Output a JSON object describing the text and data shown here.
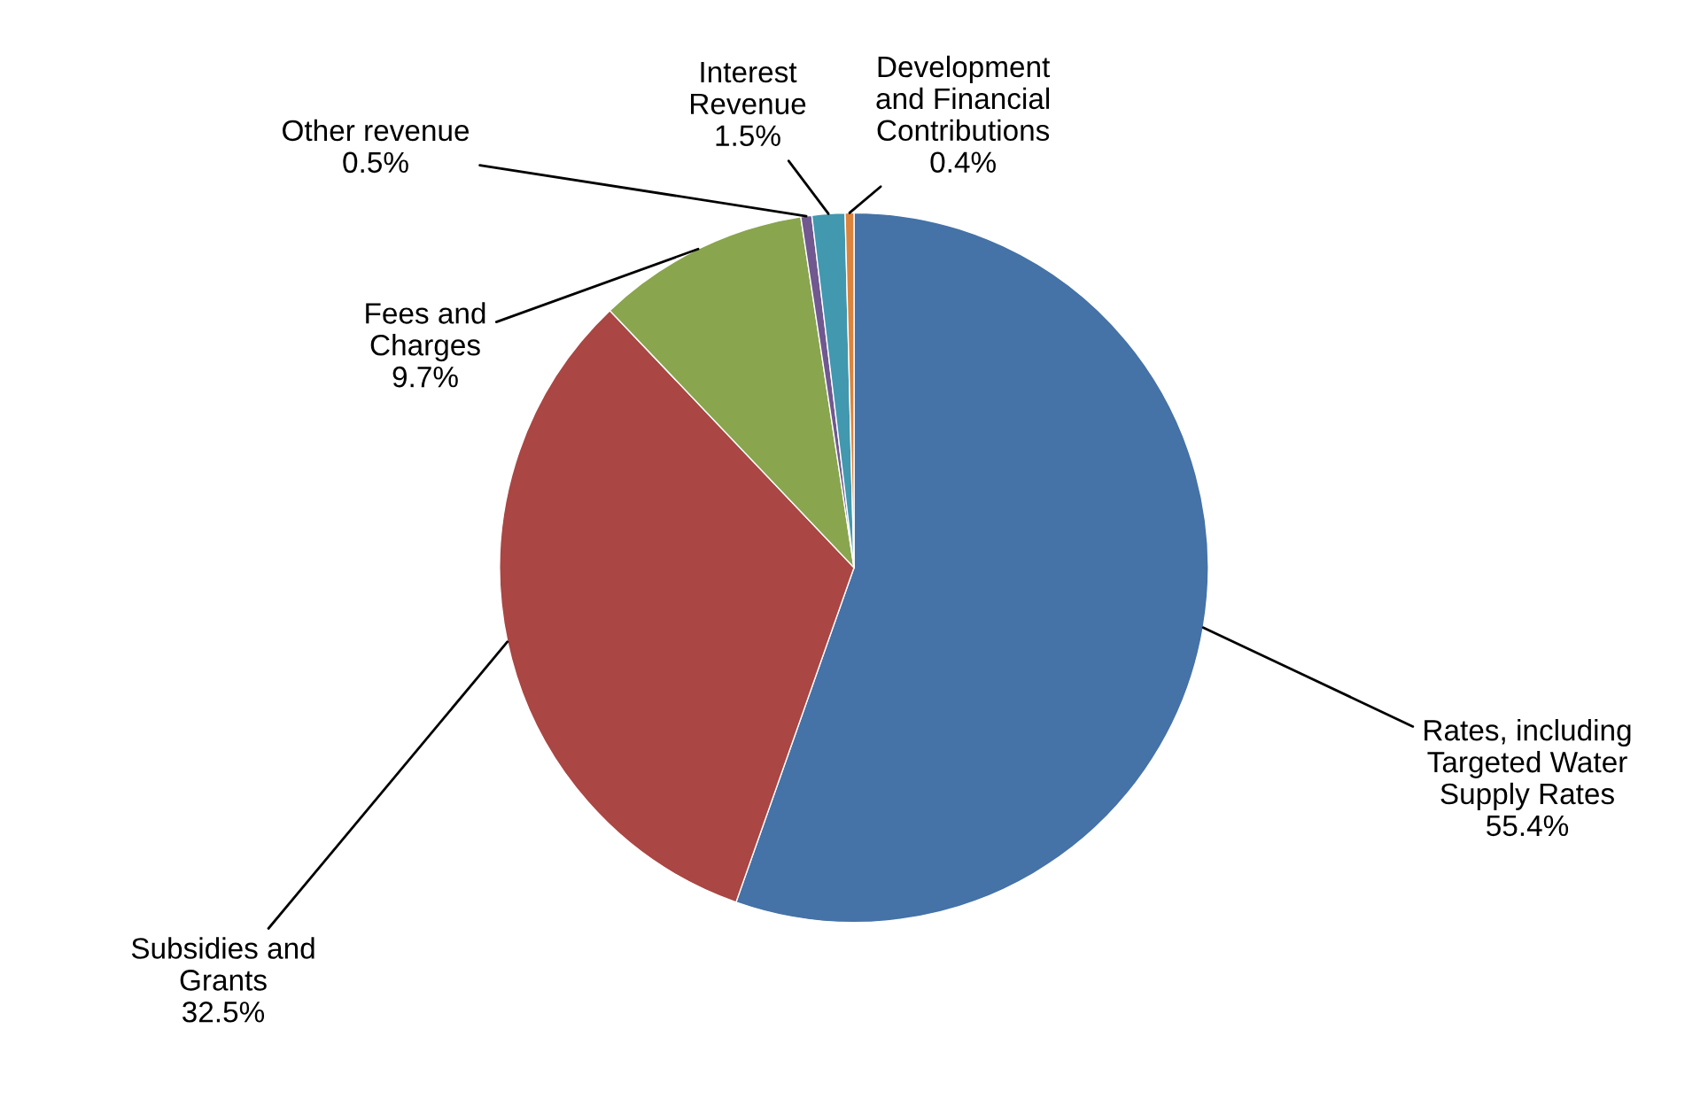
{
  "chart_data": {
    "type": "pie",
    "categories": [
      "Rates, including\nTargeted Water\nSupply Rates",
      "Subsidies and\nGrants",
      "Fees and\nCharges",
      "Other revenue",
      "Interest\nRevenue",
      "Development\nand Financial\nContributions"
    ],
    "values": [
      55.4,
      32.5,
      9.7,
      0.5,
      1.5,
      0.4
    ],
    "value_labels": [
      "55.4%",
      "32.5%",
      "9.7%",
      "0.5%",
      "1.5%",
      "0.4%"
    ],
    "colors": [
      "#4572a7",
      "#aa4643",
      "#89a54e",
      "#71588f",
      "#4198af",
      "#db843d"
    ],
    "legend": false
  }
}
